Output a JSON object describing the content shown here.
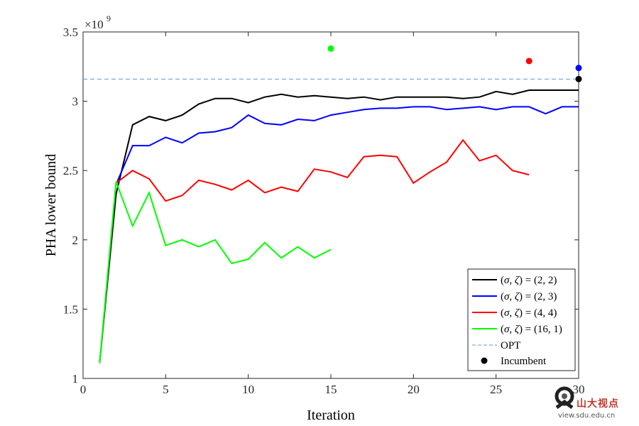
{
  "chart_data": {
    "type": "line",
    "xlabel": "Iteration",
    "ylabel": "PHA lower bound",
    "y_exponent_label": "×10",
    "y_exponent_power": "9",
    "xlim": [
      0,
      30
    ],
    "ylim": [
      1,
      3.5
    ],
    "x_ticks": [
      0,
      5,
      10,
      15,
      20,
      25,
      30
    ],
    "y_ticks": [
      1,
      1.5,
      2,
      2.5,
      3,
      3.5
    ],
    "x_tick_labels": [
      "0",
      "5",
      "10",
      "15",
      "20",
      "25",
      "30"
    ],
    "y_tick_labels": [
      "1",
      "1.5",
      "2",
      "2.5",
      "3",
      "3.5"
    ],
    "grid": false,
    "legend_position": "bottom-right",
    "series": [
      {
        "name": "(σ, ζ) = (2, 2)",
        "name_plain": "(σ, ζ) = (2, 2)",
        "color": "#000000",
        "x": [
          1,
          2,
          3,
          4,
          5,
          6,
          7,
          8,
          9,
          10,
          11,
          12,
          13,
          14,
          15,
          16,
          17,
          18,
          19,
          20,
          21,
          22,
          23,
          24,
          25,
          26,
          27,
          28,
          29,
          30
        ],
        "y": [
          1.11,
          2.33,
          2.83,
          2.89,
          2.86,
          2.9,
          2.98,
          3.02,
          3.02,
          2.99,
          3.03,
          3.05,
          3.03,
          3.04,
          3.03,
          3.02,
          3.03,
          3.01,
          3.03,
          3.03,
          3.03,
          3.03,
          3.02,
          3.03,
          3.07,
          3.05,
          3.08,
          3.08,
          3.08,
          3.08
        ]
      },
      {
        "name": "(σ, ζ) = (2, 3)",
        "name_plain": "(σ, ζ) = (2, 3)",
        "color": "#0000ff",
        "x": [
          2,
          3,
          4,
          5,
          6,
          7,
          8,
          9,
          10,
          11,
          12,
          13,
          14,
          15,
          16,
          17,
          18,
          19,
          20,
          21,
          22,
          23,
          24,
          25,
          26,
          27,
          28,
          29,
          30
        ],
        "y": [
          2.4,
          2.68,
          2.68,
          2.74,
          2.7,
          2.77,
          2.78,
          2.81,
          2.9,
          2.84,
          2.83,
          2.87,
          2.86,
          2.9,
          2.92,
          2.94,
          2.95,
          2.95,
          2.96,
          2.96,
          2.94,
          2.95,
          2.96,
          2.94,
          2.96,
          2.96,
          2.91,
          2.96,
          2.96
        ]
      },
      {
        "name": "(σ, ζ) = (4, 4)",
        "name_plain": "(σ, ζ) = (4, 4)",
        "color": "#ff0000",
        "x": [
          2,
          3,
          4,
          5,
          6,
          7,
          8,
          9,
          10,
          11,
          12,
          13,
          14,
          15,
          16,
          17,
          18,
          19,
          20,
          21,
          22,
          23,
          24,
          25,
          26,
          27
        ],
        "y": [
          2.41,
          2.5,
          2.44,
          2.28,
          2.32,
          2.43,
          2.4,
          2.36,
          2.43,
          2.34,
          2.38,
          2.35,
          2.51,
          2.49,
          2.45,
          2.6,
          2.61,
          2.6,
          2.41,
          2.49,
          2.56,
          2.72,
          2.57,
          2.61,
          2.5,
          2.47
        ]
      },
      {
        "name": "(σ, ζ) = (16, 1)",
        "name_plain": "(σ, ζ) = (16, 1)",
        "color": "#00ff00",
        "x": [
          1,
          2,
          3,
          4,
          5,
          6,
          7,
          8,
          9,
          10,
          11,
          12,
          13,
          14,
          15
        ],
        "y": [
          1.11,
          2.42,
          2.1,
          2.34,
          1.96,
          2.0,
          1.95,
          2.0,
          1.83,
          1.86,
          1.98,
          1.87,
          1.95,
          1.87,
          1.93
        ]
      }
    ],
    "opt": {
      "name": "OPT",
      "value": 3.16,
      "color": "#5b9bd5"
    },
    "incumbent": {
      "name": "Incumbent",
      "points": [
        {
          "x": 15,
          "y": 3.38,
          "color": "#00ff00"
        },
        {
          "x": 27,
          "y": 3.29,
          "color": "#ff0000"
        },
        {
          "x": 30,
          "y": 3.24,
          "color": "#0000ff"
        },
        {
          "x": 30,
          "y": 3.16,
          "color": "#000000"
        }
      ]
    }
  },
  "watermark": {
    "text": "山大视点",
    "url": "view.sdu.edu.cn"
  }
}
